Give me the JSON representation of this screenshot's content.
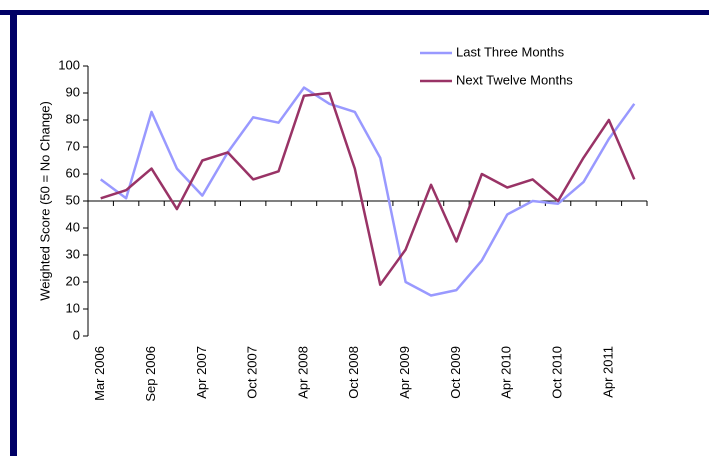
{
  "chart_data": {
    "type": "line",
    "y_label": "Weighted Score (50 = No Change)",
    "categories": [
      "Mar 2006",
      null,
      "Sep 2006",
      null,
      "Apr 2007",
      null,
      "Oct 2007",
      null,
      "Apr 2008",
      null,
      "Oct 2008",
      null,
      "Apr 2009",
      null,
      "Oct 2009",
      null,
      "Apr 2010",
      null,
      "Oct 2010",
      null,
      "Apr 2011",
      null
    ],
    "series": [
      {
        "name": "Last Three Months",
        "color": "#9999ff",
        "values": [
          58,
          51,
          83,
          62,
          52,
          68,
          81,
          79,
          92,
          86,
          83,
          66,
          20,
          15,
          17,
          28,
          45,
          50,
          49,
          57,
          73,
          86
        ]
      },
      {
        "name": "Next Twelve Months",
        "color": "#993366",
        "values": [
          51,
          54,
          62,
          47,
          65,
          68,
          58,
          61,
          89,
          90,
          62,
          19,
          32,
          56,
          35,
          60,
          55,
          58,
          50,
          66,
          80,
          58
        ]
      }
    ],
    "ylim": [
      0,
      100
    ],
    "yticks": [
      0,
      10,
      20,
      30,
      40,
      50,
      60,
      70,
      80,
      90,
      100
    ],
    "x_axis_at": 50,
    "legend": "top-right"
  }
}
